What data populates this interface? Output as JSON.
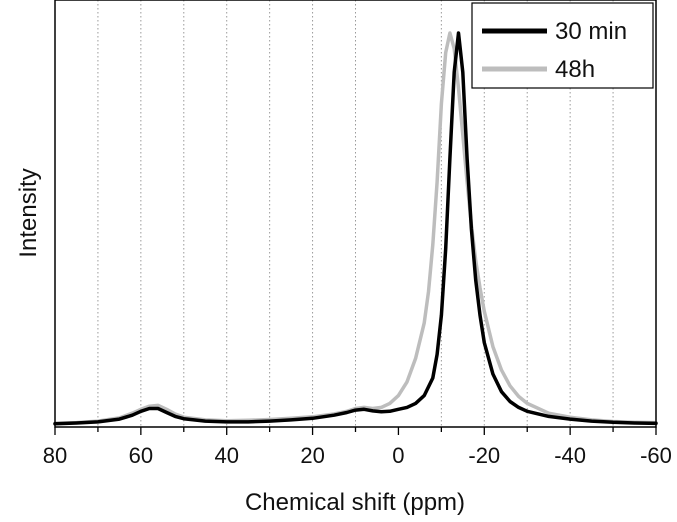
{
  "chart_data": {
    "type": "line",
    "title": "",
    "xlabel": "Chemical shift (ppm)",
    "ylabel": "Intensity",
    "xlim": [
      80,
      -60
    ],
    "ylim": [
      0,
      1.05
    ],
    "x_reversed": true,
    "x_ticks": [
      80,
      60,
      40,
      20,
      0,
      -20,
      -40,
      -60
    ],
    "x_tick_labels": [
      "80",
      "60",
      "40",
      "20",
      "0",
      "-20",
      "-40",
      "-60"
    ],
    "grid": "vertical dotted every 10 ppm",
    "legend_position": "top-right",
    "series": [
      {
        "name": "30 min",
        "color": "#000000",
        "points": [
          [
            80,
            0.003
          ],
          [
            75,
            0.005
          ],
          [
            70,
            0.008
          ],
          [
            65,
            0.015
          ],
          [
            62,
            0.025
          ],
          [
            60,
            0.035
          ],
          [
            58,
            0.042
          ],
          [
            56,
            0.042
          ],
          [
            54,
            0.032
          ],
          [
            52,
            0.022
          ],
          [
            50,
            0.016
          ],
          [
            45,
            0.01
          ],
          [
            40,
            0.008
          ],
          [
            35,
            0.008
          ],
          [
            30,
            0.01
          ],
          [
            25,
            0.013
          ],
          [
            20,
            0.017
          ],
          [
            15,
            0.025
          ],
          [
            12,
            0.032
          ],
          [
            10,
            0.038
          ],
          [
            8,
            0.04
          ],
          [
            6,
            0.036
          ],
          [
            4,
            0.034
          ],
          [
            2,
            0.035
          ],
          [
            0,
            0.04
          ],
          [
            -2,
            0.045
          ],
          [
            -4,
            0.055
          ],
          [
            -6,
            0.075
          ],
          [
            -8,
            0.12
          ],
          [
            -9,
            0.18
          ],
          [
            -10,
            0.28
          ],
          [
            -11,
            0.45
          ],
          [
            -12,
            0.68
          ],
          [
            -13,
            0.9
          ],
          [
            -14,
            1.0
          ],
          [
            -15,
            0.9
          ],
          [
            -16,
            0.68
          ],
          [
            -17,
            0.5
          ],
          [
            -18,
            0.37
          ],
          [
            -19,
            0.28
          ],
          [
            -20,
            0.21
          ],
          [
            -22,
            0.13
          ],
          [
            -24,
            0.085
          ],
          [
            -26,
            0.06
          ],
          [
            -28,
            0.045
          ],
          [
            -30,
            0.035
          ],
          [
            -35,
            0.022
          ],
          [
            -40,
            0.015
          ],
          [
            -45,
            0.01
          ],
          [
            -50,
            0.007
          ],
          [
            -55,
            0.005
          ],
          [
            -60,
            0.004
          ]
        ]
      },
      {
        "name": "48h",
        "color": "#bdbdbd",
        "points": [
          [
            80,
            0.004
          ],
          [
            75,
            0.006
          ],
          [
            70,
            0.01
          ],
          [
            65,
            0.018
          ],
          [
            62,
            0.03
          ],
          [
            60,
            0.04
          ],
          [
            58,
            0.048
          ],
          [
            56,
            0.05
          ],
          [
            54,
            0.04
          ],
          [
            52,
            0.028
          ],
          [
            50,
            0.02
          ],
          [
            45,
            0.013
          ],
          [
            40,
            0.011
          ],
          [
            35,
            0.012
          ],
          [
            30,
            0.014
          ],
          [
            25,
            0.017
          ],
          [
            20,
            0.021
          ],
          [
            15,
            0.028
          ],
          [
            12,
            0.035
          ],
          [
            10,
            0.042
          ],
          [
            8,
            0.045
          ],
          [
            6,
            0.042
          ],
          [
            4,
            0.045
          ],
          [
            2,
            0.055
          ],
          [
            0,
            0.075
          ],
          [
            -2,
            0.11
          ],
          [
            -4,
            0.17
          ],
          [
            -6,
            0.26
          ],
          [
            -7,
            0.34
          ],
          [
            -8,
            0.46
          ],
          [
            -9,
            0.62
          ],
          [
            -10,
            0.82
          ],
          [
            -11,
            0.95
          ],
          [
            -12,
            1.0
          ],
          [
            -13,
            0.96
          ],
          [
            -14,
            0.86
          ],
          [
            -15,
            0.74
          ],
          [
            -16,
            0.62
          ],
          [
            -17,
            0.51
          ],
          [
            -18,
            0.42
          ],
          [
            -19,
            0.35
          ],
          [
            -20,
            0.29
          ],
          [
            -22,
            0.2
          ],
          [
            -24,
            0.14
          ],
          [
            -26,
            0.1
          ],
          [
            -28,
            0.073
          ],
          [
            -30,
            0.055
          ],
          [
            -35,
            0.03
          ],
          [
            -40,
            0.02
          ],
          [
            -45,
            0.013
          ],
          [
            -50,
            0.009
          ],
          [
            -55,
            0.007
          ],
          [
            -60,
            0.006
          ]
        ]
      }
    ]
  }
}
